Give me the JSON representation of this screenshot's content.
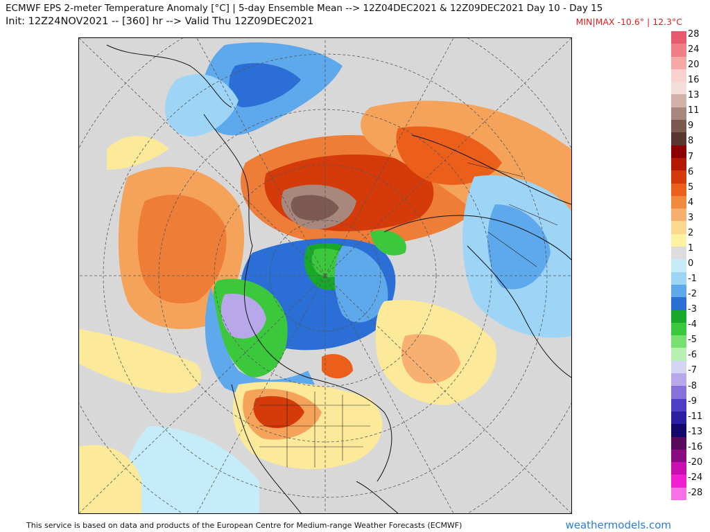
{
  "header": {
    "title_line1": "ECMWF EPS 2-meter Temperature Anomaly [°C] | 5-day Ensemble Mean --> 12Z04DEC2021 & 12Z09DEC2021   Day 10 - Day 15",
    "title_line2": "Init: 12Z24NOV2021 -- [360] hr --> Valid Thu 12Z09DEC2021",
    "minmax": "MIN|MAX -10.6° | 12.3°C"
  },
  "colorbar": {
    "labels": [
      "28",
      "24",
      "20",
      "16",
      "13",
      "11",
      "9",
      "8",
      "7",
      "6",
      "5",
      "4",
      "3",
      "2",
      "1",
      "0",
      "-1",
      "-2",
      "-3",
      "-4",
      "-5",
      "-6",
      "-7",
      "-8",
      "-9",
      "-11",
      "-13",
      "-16",
      "-20",
      "-24",
      "-28"
    ],
    "colors": [
      "#e85a6e",
      "#f07f86",
      "#f6a8a6",
      "#f9d2d0",
      "#f2ddd8",
      "#d2b2a8",
      "#a8877d",
      "#7c5a52",
      "#5a3631",
      "#8e0000",
      "#b31800",
      "#d43a0a",
      "#ec5f1a",
      "#f28a3e",
      "#f7b070",
      "#fbd890",
      "#fdf2a2",
      "#dcdcdc",
      "#c6ecfa",
      "#9ed4f5",
      "#5ea8ec",
      "#2b6fd6",
      "#18a82a",
      "#3cc83c",
      "#78e070",
      "#b5f0b0",
      "#d4d4f4",
      "#b8a8ea",
      "#8670dc",
      "#4d3ec4",
      "#2a1fa0",
      "#14086c",
      "#5a0a5a",
      "#8a0a82",
      "#c810b0",
      "#f020d0",
      "#f670e8"
    ]
  },
  "footer": {
    "credit": "This service is based on data and products of the European Centre for Medium-range Weather Forecasts (ECMWF)",
    "brand": "weathermodels.com"
  }
}
